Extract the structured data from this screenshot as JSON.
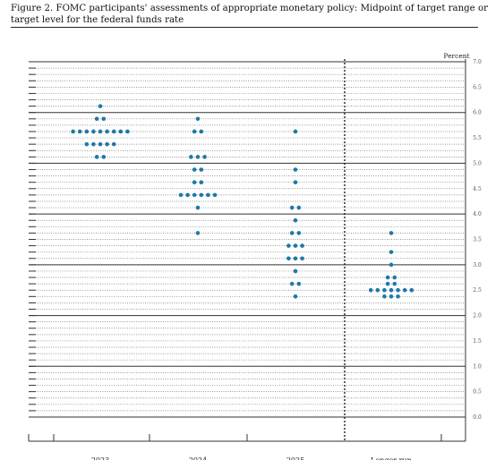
{
  "caption": "Figure 2. FOMC participants' assessments of appropriate monetary policy: Midpoint of target range or target level for the federal funds rate",
  "chart_data": {
    "type": "scatter",
    "unit_label": "Percent",
    "ylim": [
      0,
      7.0
    ],
    "y_ticks": [
      "7.0",
      "6.5",
      "6.0",
      "5.5",
      "5.0",
      "4.5",
      "4.0",
      "3.5",
      "3.0",
      "2.5",
      "2.0",
      "1.5",
      "1.0",
      "0.5",
      "0.0"
    ],
    "categories": [
      "2023",
      "2024",
      "2025",
      "Longer run"
    ],
    "series": [
      {
        "category": "2023",
        "points": [
          {
            "y": 6.125,
            "count": 1
          },
          {
            "y": 5.875,
            "count": 2
          },
          {
            "y": 5.625,
            "count": 9
          },
          {
            "y": 5.375,
            "count": 5
          },
          {
            "y": 5.125,
            "count": 2
          }
        ]
      },
      {
        "category": "2024",
        "points": [
          {
            "y": 5.875,
            "count": 1
          },
          {
            "y": 5.625,
            "count": 2
          },
          {
            "y": 5.125,
            "count": 3
          },
          {
            "y": 4.875,
            "count": 2
          },
          {
            "y": 4.625,
            "count": 2
          },
          {
            "y": 4.375,
            "count": 6
          },
          {
            "y": 4.125,
            "count": 1
          },
          {
            "y": 3.625,
            "count": 1
          }
        ]
      },
      {
        "category": "2025",
        "points": [
          {
            "y": 5.625,
            "count": 1
          },
          {
            "y": 4.875,
            "count": 1
          },
          {
            "y": 4.625,
            "count": 1
          },
          {
            "y": 4.125,
            "count": 2
          },
          {
            "y": 3.875,
            "count": 1
          },
          {
            "y": 3.625,
            "count": 2
          },
          {
            "y": 3.375,
            "count": 3
          },
          {
            "y": 3.125,
            "count": 3
          },
          {
            "y": 2.875,
            "count": 1
          },
          {
            "y": 2.625,
            "count": 2
          },
          {
            "y": 2.375,
            "count": 1
          }
        ]
      },
      {
        "category": "Longer run",
        "points": [
          {
            "y": 3.625,
            "count": 1
          },
          {
            "y": 3.25,
            "count": 1
          },
          {
            "y": 3.0,
            "count": 1
          },
          {
            "y": 2.75,
            "count": 2
          },
          {
            "y": 2.625,
            "count": 2
          },
          {
            "y": 2.5,
            "count": 7
          },
          {
            "y": 2.375,
            "count": 3
          }
        ]
      }
    ],
    "dot_color": "#1f78a8"
  }
}
